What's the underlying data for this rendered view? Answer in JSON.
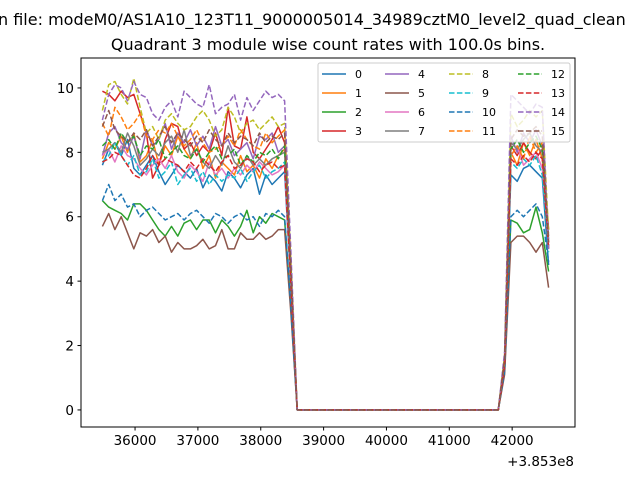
{
  "chart_data": {
    "type": "line",
    "suptitle": "n file: modeM0/AS1A10_123T11_9000005014_34989cztM0_level2_quad_clean",
    "title": "Quadrant 3 module wise count rates with 100.0s bins.",
    "xlabel": "",
    "ylabel": "",
    "x_offset_text": "+3.853e8",
    "xlim": [
      35140,
      43000
    ],
    "ylim": [
      -0.53,
      10.93
    ],
    "xticks": [
      36000,
      37000,
      38000,
      39000,
      40000,
      41000,
      42000
    ],
    "xtick_labels": [
      "36000",
      "37000",
      "38000",
      "39000",
      "40000",
      "41000",
      "42000"
    ],
    "yticks": [
      0,
      2,
      4,
      6,
      8,
      10
    ],
    "ytick_labels": [
      "0",
      "2",
      "4",
      "6",
      "8",
      "10"
    ],
    "grid": false,
    "legend_placement": "top-right",
    "legend_columns": 4,
    "x_start": 35480,
    "x_step": 100,
    "series": [
      {
        "name": "0",
        "color": "#1f77b4",
        "dash": false,
        "values": [
          7.6,
          8.1,
          8.3,
          7.9,
          8.4,
          7.5,
          7.3,
          7.6,
          7.9,
          7.4,
          7.0,
          7.3,
          7.6,
          7.4,
          7.2,
          7.5,
          6.9,
          7.3,
          7.1,
          6.8,
          7.4,
          7.2,
          6.9,
          7.3,
          7.5,
          6.7,
          7.3,
          7.0,
          7.2,
          7.4,
          3.8,
          0,
          0,
          0,
          0,
          0,
          0,
          0,
          0,
          0,
          0,
          0,
          0,
          0,
          0,
          0,
          0,
          0,
          0,
          0,
          0,
          0,
          0,
          0,
          0,
          0,
          0,
          0,
          0,
          0,
          0,
          0,
          0,
          0,
          1.4,
          7.3,
          7.1,
          7.5,
          7.6,
          7.4,
          7.2,
          4.5
        ]
      },
      {
        "name": "1",
        "color": "#ff7f0e",
        "dash": false,
        "values": [
          7.8,
          8.3,
          8.1,
          8.5,
          8.0,
          8.6,
          7.7,
          7.9,
          8.4,
          7.6,
          8.2,
          7.9,
          8.5,
          8.1,
          7.8,
          8.3,
          7.5,
          7.9,
          7.2,
          7.7,
          7.5,
          7.3,
          7.9,
          7.4,
          7.6,
          7.2,
          7.8,
          7.5,
          7.9,
          8.1,
          4.1,
          0,
          0,
          0,
          0,
          0,
          0,
          0,
          0,
          0,
          0,
          0,
          0,
          0,
          0,
          0,
          0,
          0,
          0,
          0,
          0,
          0,
          0,
          0,
          0,
          0,
          0,
          0,
          0,
          0,
          0,
          0,
          0,
          0,
          1.5,
          8.0,
          7.6,
          8.3,
          7.9,
          8.4,
          7.8,
          5.0
        ]
      },
      {
        "name": "2",
        "color": "#2ca02c",
        "dash": false,
        "values": [
          6.5,
          6.3,
          6.2,
          6.1,
          5.9,
          6.4,
          6.4,
          6.2,
          5.9,
          5.6,
          5.4,
          5.7,
          5.4,
          5.8,
          5.9,
          5.6,
          5.9,
          5.9,
          5.5,
          5.9,
          5.7,
          5.4,
          5.7,
          6.2,
          5.5,
          6.0,
          5.8,
          6.1,
          6.0,
          5.9,
          3.2,
          0,
          0,
          0,
          0,
          0,
          0,
          0,
          0,
          0,
          0,
          0,
          0,
          0,
          0,
          0,
          0,
          0,
          0,
          0,
          0,
          0,
          0,
          0,
          0,
          0,
          0,
          0,
          0,
          0,
          0,
          0,
          0,
          0,
          1.2,
          5.9,
          5.8,
          5.5,
          5.6,
          6.3,
          5.5,
          4.3
        ]
      },
      {
        "name": "3",
        "color": "#d62728",
        "dash": false,
        "values": [
          9.9,
          9.8,
          9.6,
          9.9,
          9.7,
          9.8,
          9.2,
          8.6,
          7.2,
          7.6,
          8.4,
          8.9,
          8.8,
          8.1,
          8.3,
          7.9,
          8.2,
          8.0,
          8.6,
          7.9,
          9.4,
          8.2,
          8.1,
          9.1,
          8.0,
          7.8,
          8.1,
          8.4,
          8.8,
          8.3,
          4.3,
          0,
          0,
          0,
          0,
          0,
          0,
          0,
          0,
          0,
          0,
          0,
          0,
          0,
          0,
          0,
          0,
          0,
          0,
          0,
          0,
          0,
          0,
          0,
          0,
          0,
          0,
          0,
          0,
          0,
          0,
          0,
          0,
          0,
          1.6,
          8.2,
          7.9,
          8.3,
          8.0,
          7.8,
          8.1,
          5.6
        ]
      },
      {
        "name": "4",
        "color": "#9467bd",
        "dash": false,
        "values": [
          7.9,
          8.6,
          8.8,
          8.3,
          8.1,
          8.5,
          7.8,
          8.7,
          8.2,
          8.4,
          8.9,
          8.1,
          8.6,
          8.3,
          8.7,
          8.2,
          8.5,
          8.1,
          8.8,
          8.2,
          8.4,
          7.9,
          8.1,
          8.3,
          7.8,
          8.5,
          8.4,
          8.6,
          8.0,
          8.2,
          4.2,
          0,
          0,
          0,
          0,
          0,
          0,
          0,
          0,
          0,
          0,
          0,
          0,
          0,
          0,
          0,
          0,
          0,
          0,
          0,
          0,
          0,
          0,
          0,
          0,
          0,
          0,
          0,
          0,
          0,
          0,
          0,
          0,
          0,
          1.6,
          8.5,
          8.0,
          8.6,
          8.3,
          8.7,
          8.2,
          5.4
        ]
      },
      {
        "name": "5",
        "color": "#8c564b",
        "dash": false,
        "values": [
          5.7,
          6.1,
          5.6,
          6.0,
          5.5,
          5.0,
          5.5,
          5.4,
          5.6,
          5.2,
          5.4,
          4.9,
          5.2,
          5.0,
          5.0,
          5.1,
          5.3,
          5.0,
          5.1,
          5.6,
          5.0,
          5.0,
          5.5,
          5.3,
          5.3,
          5.5,
          5.3,
          5.4,
          5.6,
          5.6,
          3.0,
          0,
          0,
          0,
          0,
          0,
          0,
          0,
          0,
          0,
          0,
          0,
          0,
          0,
          0,
          0,
          0,
          0,
          0,
          0,
          0,
          0,
          0,
          0,
          0,
          0,
          0,
          0,
          0,
          0,
          0,
          0,
          0,
          0,
          1.1,
          5.2,
          5.4,
          5.4,
          5.2,
          4.9,
          5.2,
          3.8
        ]
      },
      {
        "name": "6",
        "color": "#e377c2",
        "dash": false,
        "values": [
          7.9,
          8.1,
          7.7,
          8.2,
          7.9,
          7.8,
          7.5,
          7.3,
          7.6,
          7.8,
          7.5,
          7.9,
          7.4,
          7.2,
          7.6,
          7.4,
          7.1,
          7.7,
          7.3,
          7.5,
          7.2,
          7.5,
          7.3,
          7.6,
          7.4,
          7.7,
          7.5,
          7.3,
          7.4,
          7.6,
          3.9,
          0,
          0,
          0,
          0,
          0,
          0,
          0,
          0,
          0,
          0,
          0,
          0,
          0,
          0,
          0,
          0,
          0,
          0,
          0,
          0,
          0,
          0,
          0,
          0,
          0,
          0,
          0,
          0,
          0,
          0,
          0,
          0,
          0,
          1.5,
          7.9,
          8.2,
          7.6,
          7.8,
          8.0,
          7.5,
          5.1
        ]
      },
      {
        "name": "7",
        "color": "#7f7f7f",
        "dash": false,
        "values": [
          8.0,
          8.1,
          8.3,
          8.0,
          8.6,
          8.2,
          7.6,
          7.8,
          8.1,
          7.9,
          8.3,
          8.5,
          8.0,
          8.7,
          7.9,
          8.1,
          7.7,
          7.5,
          7.9,
          7.6,
          8.2,
          7.7,
          7.5,
          7.9,
          7.6,
          7.8,
          7.6,
          7.8,
          7.9,
          8.0,
          4.1,
          0,
          0,
          0,
          0,
          0,
          0,
          0,
          0,
          0,
          0,
          0,
          0,
          0,
          0,
          0,
          0,
          0,
          0,
          0,
          0,
          0,
          0,
          0,
          0,
          0,
          0,
          0,
          0,
          0,
          0,
          0,
          0,
          0,
          1.5,
          8.3,
          8.1,
          8.4,
          8.6,
          8.2,
          8.0,
          5.3
        ]
      },
      {
        "name": "8",
        "color": "#bcbd22",
        "dash": true,
        "values": [
          9.3,
          10.1,
          10.2,
          9.8,
          9.5,
          10.3,
          9.4,
          8.6,
          8.8,
          8.4,
          9.0,
          9.2,
          8.9,
          8.7,
          8.8,
          9.1,
          9.3,
          9.0,
          8.5,
          8.7,
          9.4,
          9.1,
          8.6,
          8.9,
          9.0,
          8.7,
          8.9,
          9.1,
          8.8,
          8.9,
          4.6,
          0,
          0,
          0,
          0,
          0,
          0,
          0,
          0,
          0,
          0,
          0,
          0,
          0,
          0,
          0,
          0,
          0,
          0,
          0,
          0,
          0,
          0,
          0,
          0,
          0,
          0,
          0,
          0,
          0,
          0,
          0,
          0,
          0,
          1.7,
          9.2,
          8.8,
          9.0,
          9.3,
          9.1,
          9.3,
          5.5
        ]
      },
      {
        "name": "9",
        "color": "#17becf",
        "dash": true,
        "values": [
          7.7,
          7.9,
          8.3,
          7.9,
          7.6,
          7.9,
          7.3,
          7.4,
          7.8,
          7.2,
          7.4,
          7.7,
          7.0,
          7.3,
          7.5,
          7.1,
          7.4,
          7.0,
          7.3,
          7.1,
          7.3,
          7.2,
          7.5,
          7.1,
          7.4,
          7.6,
          7.2,
          7.4,
          7.5,
          7.7,
          3.9,
          0,
          0,
          0,
          0,
          0,
          0,
          0,
          0,
          0,
          0,
          0,
          0,
          0,
          0,
          0,
          0,
          0,
          0,
          0,
          0,
          0,
          0,
          0,
          0,
          0,
          0,
          0,
          0,
          0,
          0,
          0,
          0,
          0,
          1.4,
          7.7,
          7.5,
          7.8,
          7.6,
          7.9,
          7.3,
          4.9
        ]
      },
      {
        "name": "10",
        "color": "#1f77b4",
        "dash": true,
        "values": [
          6.5,
          7.0,
          6.5,
          6.7,
          6.3,
          6.4,
          6.0,
          6.2,
          6.3,
          6.1,
          5.9,
          6.0,
          6.1,
          5.9,
          6.1,
          6.2,
          6.0,
          5.8,
          6.1,
          6.0,
          5.8,
          6.0,
          6.1,
          5.9,
          6.0,
          5.7,
          6.1,
          6.0,
          6.2,
          6.0,
          3.2,
          0,
          0,
          0,
          0,
          0,
          0,
          0,
          0,
          0,
          0,
          0,
          0,
          0,
          0,
          0,
          0,
          0,
          0,
          0,
          0,
          0,
          0,
          0,
          0,
          0,
          0,
          0,
          0,
          0,
          0,
          0,
          0,
          0,
          1.2,
          6.0,
          6.2,
          6.0,
          6.2,
          6.4,
          6.0,
          4.6
        ]
      },
      {
        "name": "11",
        "color": "#ff7f0e",
        "dash": true,
        "values": [
          8.9,
          8.5,
          9.4,
          9.1,
          8.7,
          8.9,
          9.2,
          8.5,
          8.4,
          8.7,
          8.6,
          8.9,
          8.5,
          8.2,
          8.4,
          8.7,
          8.3,
          8.0,
          8.1,
          8.2,
          8.5,
          8.2,
          8.7,
          8.4,
          8.2,
          8.1,
          8.6,
          8.3,
          8.5,
          8.7,
          4.4,
          0,
          0,
          0,
          0,
          0,
          0,
          0,
          0,
          0,
          0,
          0,
          0,
          0,
          0,
          0,
          0,
          0,
          0,
          0,
          0,
          0,
          0,
          0,
          0,
          0,
          0,
          0,
          0,
          0,
          0,
          0,
          0,
          0,
          1.5,
          7.9,
          8.2,
          7.8,
          8.5,
          8.0,
          8.3,
          5.2
        ]
      },
      {
        "name": "12",
        "color": "#2ca02c",
        "dash": true,
        "values": [
          8.2,
          8.4,
          8.1,
          8.6,
          8.3,
          8.5,
          7.9,
          8.2,
          8.1,
          8.4,
          7.8,
          8.0,
          8.2,
          7.9,
          7.8,
          8.1,
          7.7,
          8.0,
          8.2,
          7.8,
          7.9,
          8.1,
          7.6,
          7.9,
          7.7,
          8.0,
          7.9,
          8.1,
          7.8,
          8.2,
          4.2,
          0,
          0,
          0,
          0,
          0,
          0,
          0,
          0,
          0,
          0,
          0,
          0,
          0,
          0,
          0,
          0,
          0,
          0,
          0,
          0,
          0,
          0,
          0,
          0,
          0,
          0,
          0,
          0,
          0,
          0,
          0,
          0,
          0,
          1.5,
          8.1,
          8.4,
          8.0,
          8.3,
          8.5,
          8.1,
          5.1
        ]
      },
      {
        "name": "13",
        "color": "#d62728",
        "dash": true,
        "values": [
          7.7,
          7.8,
          8.0,
          7.9,
          7.6,
          7.3,
          7.2,
          7.5,
          7.9,
          7.6,
          7.8,
          7.7,
          7.6,
          7.4,
          7.7,
          7.5,
          7.8,
          7.6,
          7.4,
          7.7,
          7.9,
          7.5,
          7.6,
          7.8,
          7.7,
          7.4,
          7.6,
          7.7,
          7.5,
          7.6,
          3.9,
          0,
          0,
          0,
          0,
          0,
          0,
          0,
          0,
          0,
          0,
          0,
          0,
          0,
          0,
          0,
          0,
          0,
          0,
          0,
          0,
          0,
          0,
          0,
          0,
          0,
          0,
          0,
          0,
          0,
          0,
          0,
          0,
          0,
          1.4,
          7.8,
          7.6,
          7.9,
          7.7,
          8.0,
          7.8,
          5.0
        ]
      },
      {
        "name": "14",
        "color": "#9467bd",
        "dash": true,
        "values": [
          9.0,
          9.8,
          10.1,
          10.0,
          9.6,
          10.2,
          9.8,
          9.7,
          9.2,
          9.0,
          9.4,
          9.6,
          9.1,
          9.9,
          9.7,
          9.5,
          9.4,
          10.1,
          9.2,
          9.4,
          9.5,
          9.8,
          9.0,
          9.7,
          9.3,
          9.6,
          9.9,
          9.7,
          9.8,
          9.6,
          4.9,
          0,
          0,
          0,
          0,
          0,
          0,
          0,
          0,
          0,
          0,
          0,
          0,
          0,
          0,
          0,
          0,
          0,
          0,
          0,
          0,
          0,
          0,
          0,
          0,
          0,
          0,
          0,
          0,
          0,
          0,
          0,
          0,
          0,
          1.8,
          9.8,
          9.6,
          9.4,
          9.2,
          9.5,
          9.4,
          5.0
        ]
      },
      {
        "name": "15",
        "color": "#8c564b",
        "dash": true,
        "values": [
          8.8,
          9.3,
          8.7,
          8.5,
          8.3,
          8.6,
          8.4,
          8.7,
          8.2,
          8.5,
          8.8,
          8.3,
          8.6,
          8.4,
          8.2,
          8.5,
          8.3,
          8.7,
          8.4,
          8.2,
          8.6,
          8.3,
          8.5,
          8.4,
          8.2,
          8.6,
          8.3,
          8.5,
          8.4,
          8.6,
          4.4,
          0,
          0,
          0,
          0,
          0,
          0,
          0,
          0,
          0,
          0,
          0,
          0,
          0,
          0,
          0,
          0,
          0,
          0,
          0,
          0,
          0,
          0,
          0,
          0,
          0,
          0,
          0,
          0,
          0,
          0,
          0,
          0,
          0,
          1.6,
          8.4,
          8.7,
          8.5,
          8.6,
          8.8,
          8.5,
          5.2
        ]
      }
    ]
  }
}
